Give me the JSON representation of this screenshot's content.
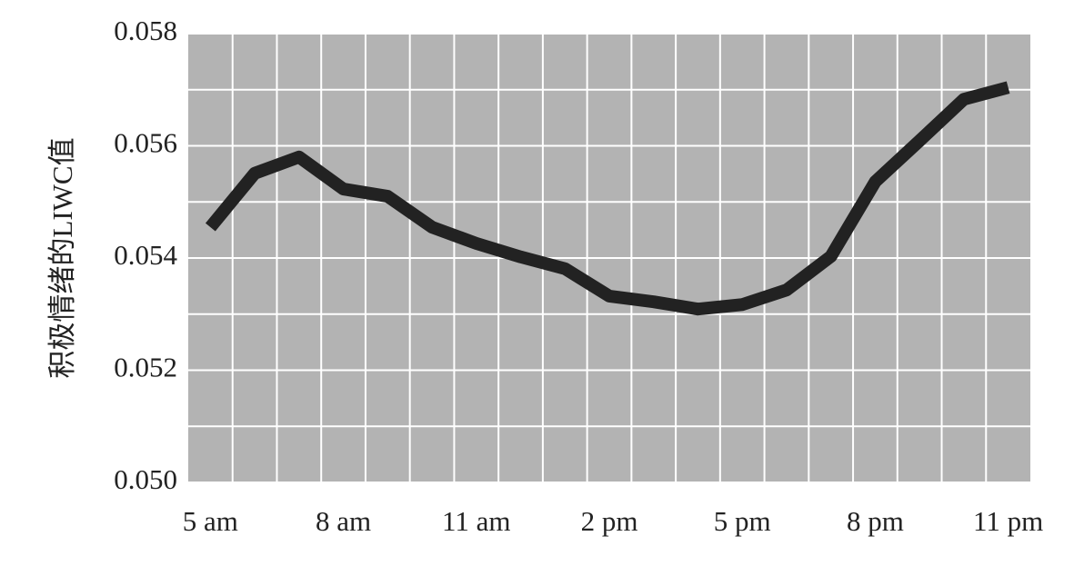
{
  "chart_data": {
    "type": "line",
    "y_label": "积极情绪的LIWC值",
    "categories": [
      "5 am",
      null,
      null,
      "8 am",
      null,
      null,
      "11 am",
      null,
      null,
      "2 pm",
      null,
      null,
      "5 pm",
      null,
      null,
      "8 pm",
      null,
      null,
      "11 pm"
    ],
    "series": [
      {
        "color": "#222222",
        "values": [
          0.05455,
          0.05551,
          0.0558,
          0.05523,
          0.0551,
          0.05455,
          0.05426,
          0.05402,
          0.05381,
          0.05332,
          0.05322,
          0.05309,
          0.05317,
          0.05343,
          0.05403,
          0.05536,
          0.05609,
          0.05683,
          0.05704
        ]
      }
    ],
    "ylim": [
      0.05,
      0.058
    ],
    "yticks": [
      {
        "value": 0.05,
        "label": "0.050"
      },
      {
        "value": 0.052,
        "label": "0.052"
      },
      {
        "value": 0.054,
        "label": "0.054"
      },
      {
        "value": 0.056,
        "label": "0.056"
      },
      {
        "value": 0.058,
        "label": "0.058"
      }
    ],
    "grid": true,
    "background": "#b3b3b3"
  }
}
